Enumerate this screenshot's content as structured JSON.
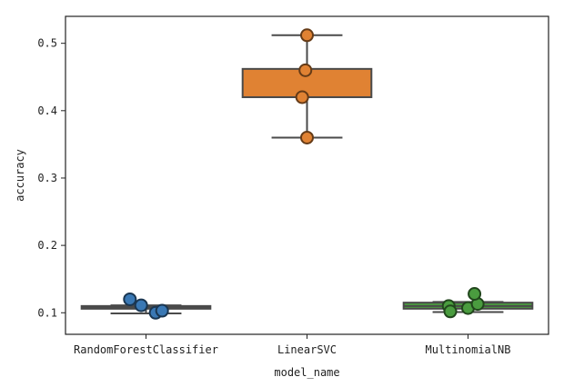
{
  "chart_data": {
    "type": "box",
    "title": "",
    "xlabel": "model_name",
    "ylabel": "accuracy",
    "ylim": [
      0.068,
      0.54
    ],
    "yticks": [
      "0.1",
      "0.2",
      "0.3",
      "0.4",
      "0.5"
    ],
    "ytick_values": [
      0.1,
      0.2,
      0.3,
      0.4,
      0.5
    ],
    "categories": [
      "RandomForestClassifier",
      "LinearSVC",
      "MultinomialNB"
    ],
    "boxes": [
      {
        "category": "RandomForestClassifier",
        "whisker_low": 0.099,
        "q1": 0.106,
        "median": 0.108,
        "q3": 0.11,
        "whisker_high": 0.111,
        "color": "#3a78b4"
      },
      {
        "category": "LinearSVC",
        "whisker_low": 0.36,
        "q1": 0.42,
        "median": 0.42,
        "q3": 0.462,
        "whisker_high": 0.512,
        "color": "#e08233"
      },
      {
        "category": "MultinomialNB",
        "whisker_low": 0.101,
        "q1": 0.106,
        "median": 0.11,
        "q3": 0.115,
        "whisker_high": 0.116,
        "color": "#4a9c3f"
      }
    ],
    "points": [
      {
        "category": "RandomForestClassifier",
        "values": [
          0.12,
          0.111,
          0.1,
          0.103
        ],
        "offsets": [
          -0.1,
          -0.03,
          0.06,
          0.1
        ],
        "color": "#3a78b4"
      },
      {
        "category": "LinearSVC",
        "values": [
          0.512,
          0.46,
          0.42,
          0.36
        ],
        "offsets": [
          0.0,
          -0.01,
          -0.03,
          0.0
        ],
        "color": "#e08233"
      },
      {
        "category": "MultinomialNB",
        "values": [
          0.11,
          0.102,
          0.107,
          0.113,
          0.128
        ],
        "offsets": [
          -0.12,
          -0.11,
          0.0,
          0.06,
          0.04
        ],
        "color": "#4a9c3f"
      }
    ]
  }
}
